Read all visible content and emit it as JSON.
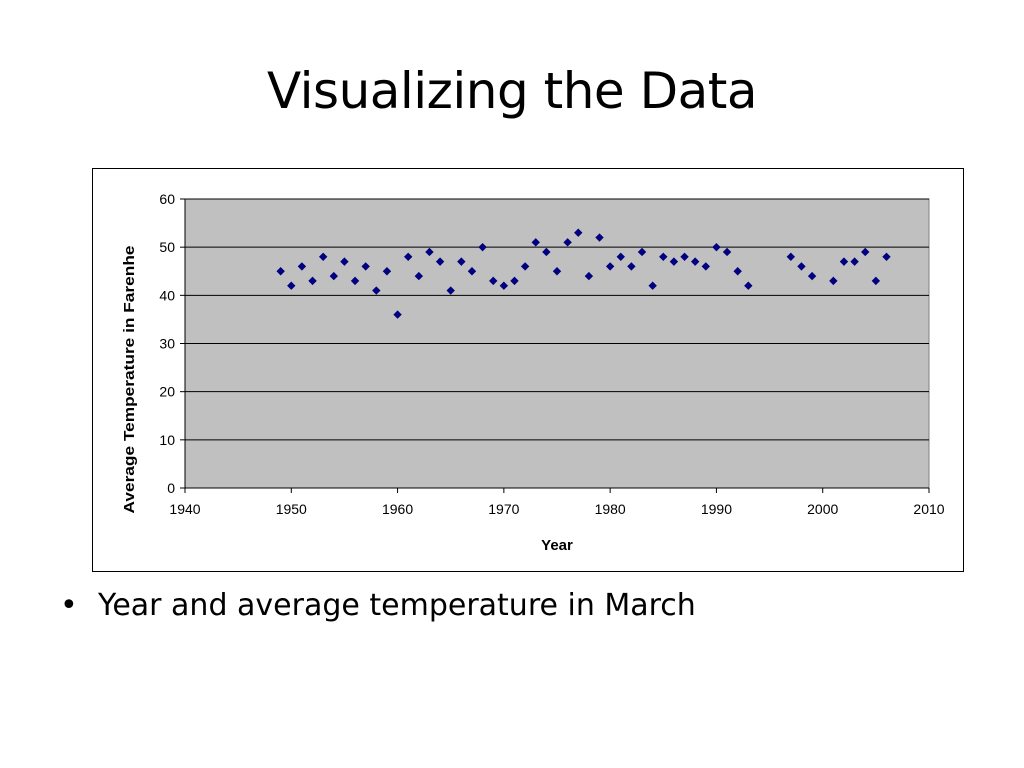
{
  "slide": {
    "title": "Visualizing the Data",
    "bullet": "Year and average temperature in March"
  },
  "chart_data": {
    "type": "scatter",
    "title": "",
    "xlabel": "Year",
    "ylabel": "Average Temperature in Farenhe",
    "xlim": [
      1940,
      2010
    ],
    "ylim": [
      0,
      60
    ],
    "xticks": [
      1940,
      1950,
      1960,
      1970,
      1980,
      1990,
      2000,
      2010
    ],
    "yticks": [
      0,
      10,
      20,
      30,
      40,
      50,
      60
    ],
    "grid": "horizontal",
    "legend": "none",
    "plot_background": "#c0c0c0",
    "marker_color": "#000080",
    "marker_shape": "diamond",
    "series": [
      {
        "x": [
          1949,
          1950,
          1951,
          1952,
          1953,
          1954,
          1955,
          1956,
          1957,
          1958,
          1959,
          1960,
          1961,
          1962,
          1963,
          1964,
          1965,
          1966,
          1967,
          1968,
          1969,
          1970,
          1971,
          1972,
          1973,
          1974,
          1975,
          1976,
          1977,
          1978,
          1979,
          1980,
          1981,
          1982,
          1983,
          1984,
          1985,
          1986,
          1987,
          1988,
          1989,
          1990,
          1991,
          1992,
          1993,
          1997,
          1998,
          1999,
          2001,
          2002,
          2003,
          2004,
          2005,
          2006
        ],
        "y": [
          45,
          42,
          46,
          43,
          48,
          44,
          47,
          43,
          46,
          41,
          45,
          36,
          48,
          44,
          49,
          47,
          41,
          47,
          45,
          50,
          43,
          42,
          43,
          46,
          51,
          49,
          45,
          51,
          53,
          44,
          52,
          46,
          48,
          46,
          49,
          42,
          48,
          47,
          48,
          47,
          46,
          50,
          49,
          45,
          42,
          48,
          46,
          44,
          43,
          47,
          47,
          49,
          43,
          48
        ]
      }
    ]
  }
}
